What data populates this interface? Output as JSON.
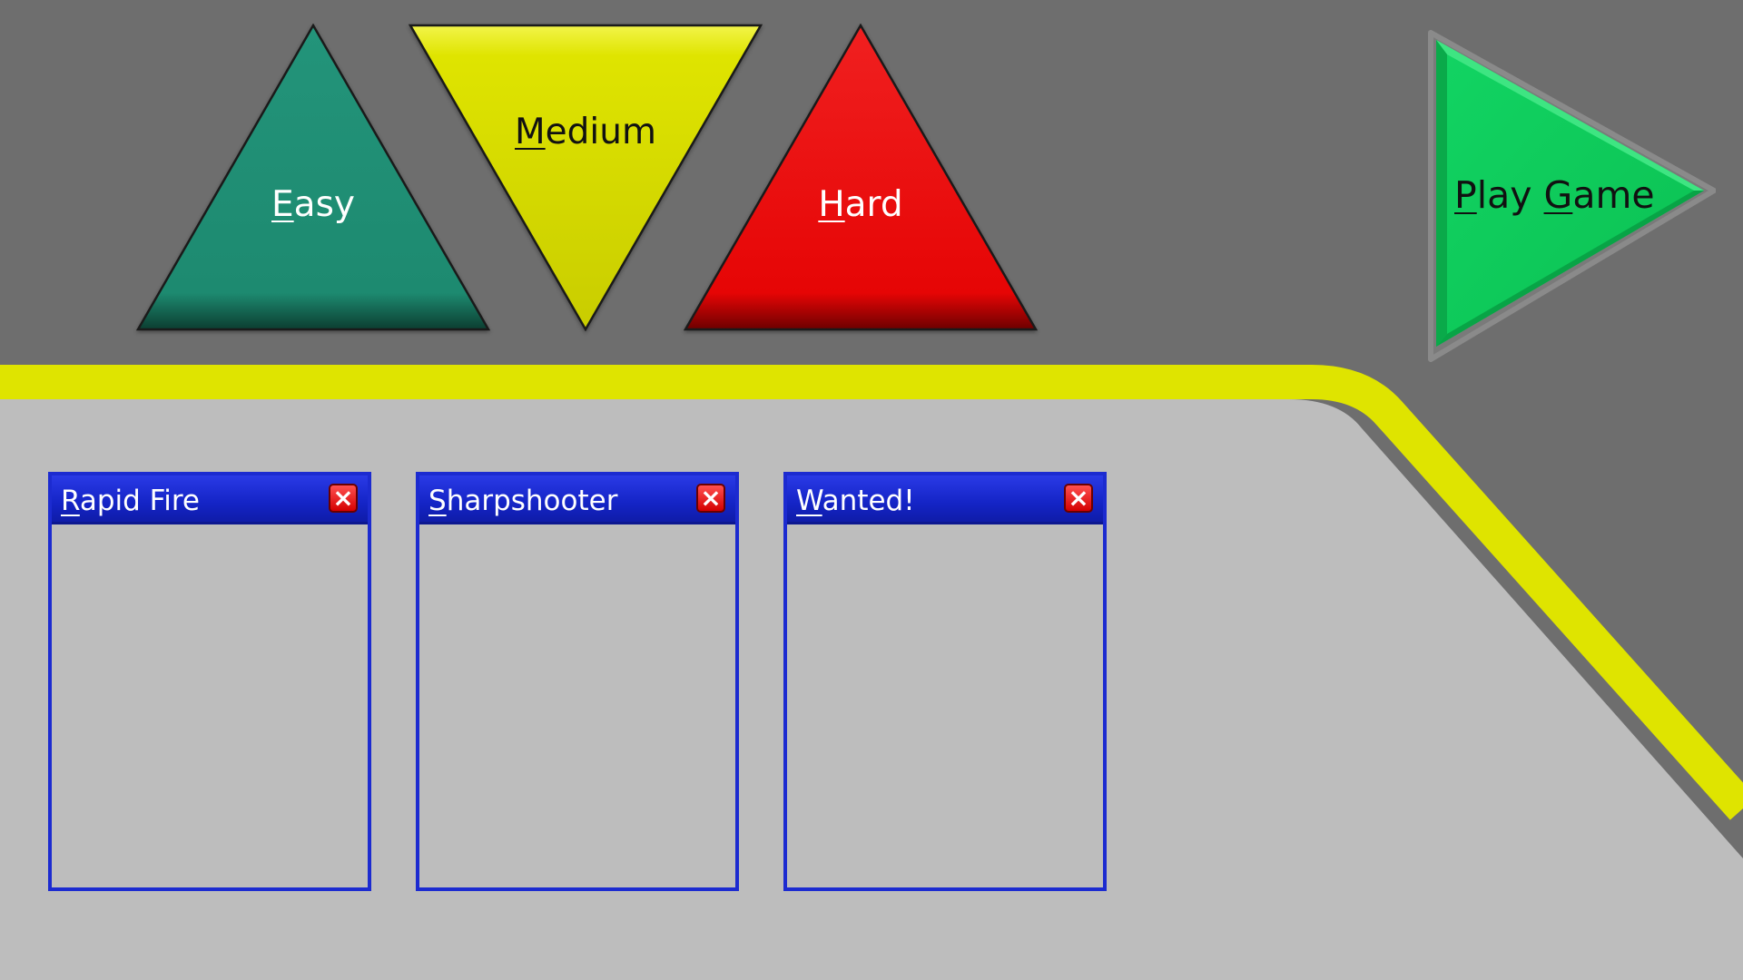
{
  "difficulty": {
    "easy": {
      "pre": "",
      "mnemonic": "E",
      "post": "asy",
      "color": "#1e8b72"
    },
    "medium": {
      "pre": "",
      "mnemonic": "M",
      "post": "edium",
      "color": "#dfe400"
    },
    "hard": {
      "pre": "",
      "mnemonic": "H",
      "post": "ard",
      "color": "#e60505"
    }
  },
  "play": {
    "p1_mnemonic": "P",
    "p1_rest": "lay ",
    "p2_mnemonic": "G",
    "p2_rest": "ame",
    "color": "#0ecb5a"
  },
  "panels": [
    {
      "mnemonic": "R",
      "rest": "apid Fire",
      "close_icon": "×"
    },
    {
      "mnemonic": "S",
      "rest": "harpshooter",
      "close_icon": "×"
    },
    {
      "mnemonic": "W",
      "rest": "anted!",
      "close_icon": "×"
    }
  ],
  "colors": {
    "background": "#6e6e6e",
    "floor": "#bdbdbd",
    "stripe": "#dfe400",
    "panel_border": "#1c2bd0"
  }
}
